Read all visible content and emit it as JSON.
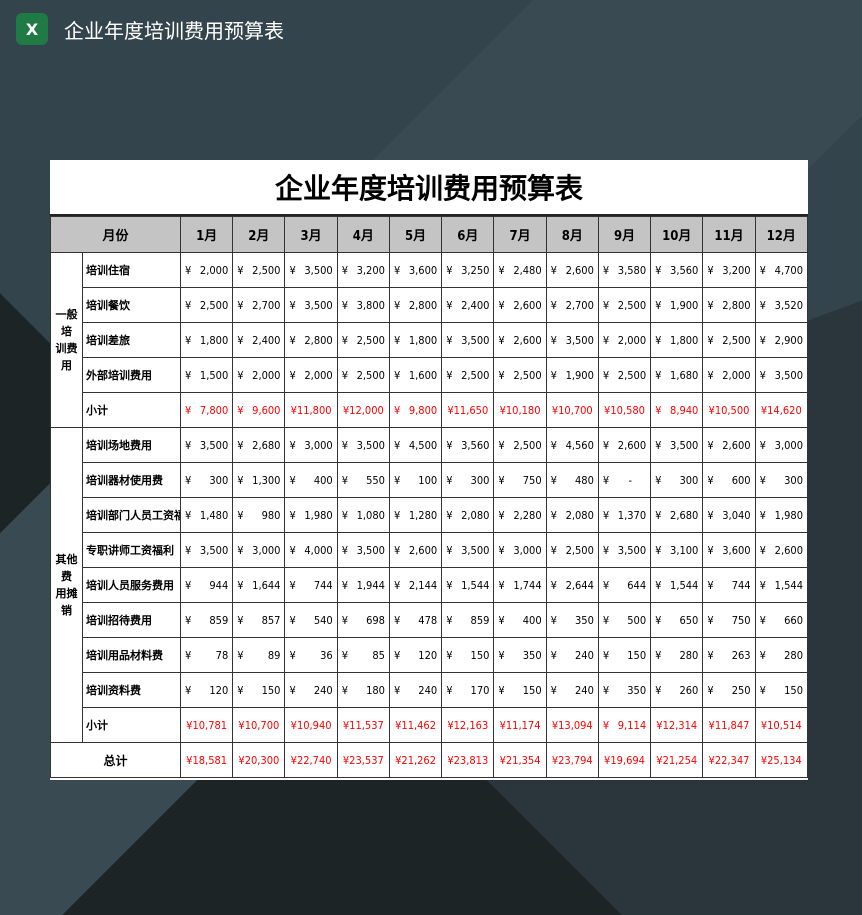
{
  "app": {
    "icon": "excel-icon",
    "title": "企业年度培训费用预算表"
  },
  "sheet": {
    "title": "企业年度培训费用预算表",
    "header": {
      "label": "月份",
      "months": [
        "1月",
        "2月",
        "3月",
        "4月",
        "5月",
        "6月",
        "7月",
        "8月",
        "9月",
        "10月",
        "11月",
        "12月"
      ]
    },
    "currency": "¥",
    "groups": [
      {
        "name": "一般培训费用",
        "rows": [
          {
            "label": "培训住宿",
            "values": [
              "2,000",
              "2,500",
              "3,500",
              "3,200",
              "3,600",
              "3,250",
              "2,480",
              "2,600",
              "3,580",
              "3,560",
              "3,200",
              "4,700"
            ]
          },
          {
            "label": "培训餐饮",
            "values": [
              "2,500",
              "2,700",
              "3,500",
              "3,800",
              "2,800",
              "2,400",
              "2,600",
              "2,700",
              "2,500",
              "1,900",
              "2,800",
              "3,520"
            ]
          },
          {
            "label": "培训差旅",
            "values": [
              "1,800",
              "2,400",
              "2,800",
              "2,500",
              "1,800",
              "3,500",
              "2,600",
              "3,500",
              "2,000",
              "1,800",
              "2,500",
              "2,900"
            ]
          },
          {
            "label": "外部培训费用",
            "values": [
              "1,500",
              "2,000",
              "2,000",
              "2,500",
              "1,600",
              "2,500",
              "2,500",
              "1,900",
              "2,500",
              "1,680",
              "2,000",
              "3,500"
            ]
          }
        ],
        "subtotal": {
          "label": "小计",
          "values": [
            "7,800",
            "9,600",
            "11,800",
            "12,000",
            "9,800",
            "11,650",
            "10,180",
            "10,700",
            "10,580",
            "8,940",
            "10,500",
            "14,620"
          ]
        }
      },
      {
        "name": "其他费用摊销",
        "rows": [
          {
            "label": "培训场地费用",
            "values": [
              "3,500",
              "2,680",
              "3,000",
              "3,500",
              "4,500",
              "3,560",
              "2,500",
              "4,560",
              "2,600",
              "3,500",
              "2,600",
              "3,000"
            ]
          },
          {
            "label": "培训器材使用费",
            "values": [
              "300",
              "1,300",
              "400",
              "550",
              "100",
              "300",
              "750",
              "480",
              "-",
              "300",
              "600",
              "300"
            ]
          },
          {
            "label": "培训部门人员工资福利",
            "values": [
              "1,480",
              "980",
              "1,980",
              "1,080",
              "1,280",
              "2,080",
              "2,280",
              "2,080",
              "1,370",
              "2,680",
              "3,040",
              "1,980"
            ]
          },
          {
            "label": "专职讲师工资福利",
            "values": [
              "3,500",
              "3,000",
              "4,000",
              "3,500",
              "2,600",
              "3,500",
              "3,000",
              "2,500",
              "3,500",
              "3,100",
              "3,600",
              "2,600"
            ]
          },
          {
            "label": "培训人员服务费用",
            "values": [
              "944",
              "1,644",
              "744",
              "1,944",
              "2,144",
              "1,544",
              "1,744",
              "2,644",
              "644",
              "1,544",
              "744",
              "1,544"
            ]
          },
          {
            "label": "培训招待费用",
            "values": [
              "859",
              "857",
              "540",
              "698",
              "478",
              "859",
              "400",
              "350",
              "500",
              "650",
              "750",
              "660"
            ]
          },
          {
            "label": "培训用品材料费",
            "values": [
              "78",
              "89",
              "36",
              "85",
              "120",
              "150",
              "350",
              "240",
              "150",
              "280",
              "263",
              "280"
            ]
          },
          {
            "label": "培训资料费",
            "values": [
              "120",
              "150",
              "240",
              "180",
              "240",
              "170",
              "150",
              "240",
              "350",
              "260",
              "250",
              "150"
            ]
          }
        ],
        "subtotal": {
          "label": "小计",
          "values": [
            "10,781",
            "10,700",
            "10,940",
            "11,537",
            "11,462",
            "12,163",
            "11,174",
            "13,094",
            "9,114",
            "12,314",
            "11,847",
            "10,514"
          ]
        }
      }
    ],
    "total": {
      "label": "总计",
      "values": [
        "18,581",
        "20,300",
        "22,740",
        "23,537",
        "21,262",
        "23,813",
        "21,354",
        "23,794",
        "19,694",
        "21,254",
        "22,347",
        "25,134"
      ]
    },
    "colors": {
      "subtotal": "#ff0000",
      "header_bg": "#c4c4c4",
      "excel_green": "#1f7a44"
    }
  }
}
